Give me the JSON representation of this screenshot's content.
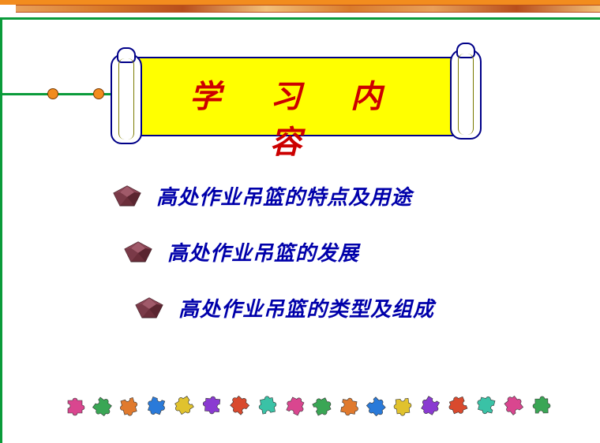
{
  "banner": {
    "title": "学 习 内 容",
    "title_color": "#cc0000",
    "bg_color": "#ffff00",
    "border_color": "#000088",
    "fontsize": 40
  },
  "frame": {
    "green": "#0a9b3a",
    "orange": "#f28c1e",
    "dot_border": "#7a3a00"
  },
  "bullets": [
    {
      "text": "高处作业吊篮的特点及用途"
    },
    {
      "text": "高处作业吊篮的发展"
    },
    {
      "text": "高处作业吊篮的类型及组成"
    }
  ],
  "bullet_style": {
    "text_color": "#0000aa",
    "fontsize": 26,
    "gem_color": "#6b2e3a",
    "gem_color_light": "#a05a6a",
    "gem_color_dark": "#3a1820"
  },
  "puzzles": {
    "count": 18,
    "colors": [
      "#d9468f",
      "#3aa655",
      "#e07a2e",
      "#2a7ad9",
      "#e0c22e",
      "#8a3ad1",
      "#d94a2e",
      "#3ac2a6",
      "#d9468f",
      "#3aa655",
      "#e07a2e",
      "#2a7ad9",
      "#e0c22e",
      "#8a3ad1",
      "#d94a2e",
      "#3ac2a6",
      "#d9468f",
      "#3aa655"
    ]
  }
}
